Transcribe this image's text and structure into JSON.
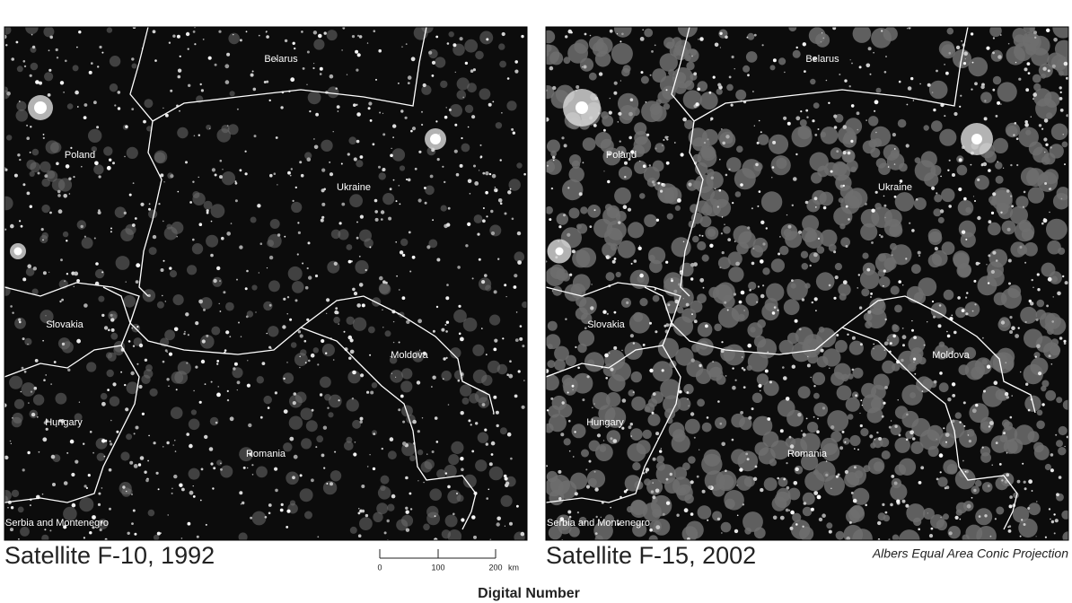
{
  "panels": [
    {
      "title": "Satellite F-10, 1992",
      "labels": [
        "Belarus",
        "Poland",
        "Ukraine",
        "Slovakia",
        "Moldova",
        "Hungary",
        "Romania",
        "Serbia and Montenegro"
      ]
    },
    {
      "title": "Satellite F-15, 2002",
      "labels": [
        "Belarus",
        "Poland",
        "Ukraine",
        "Slovakia",
        "Moldova",
        "Hungary",
        "Romania",
        "Serbia and Montenegro"
      ]
    }
  ],
  "scale_bar": {
    "ticks": [
      0,
      100,
      200
    ],
    "unit": "km"
  },
  "projection": "Albers Equal Area Conic Projection",
  "legend_title": "Digital Number"
}
